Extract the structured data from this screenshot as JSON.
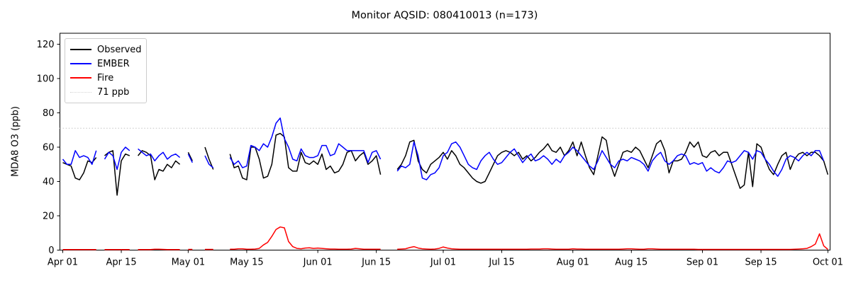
{
  "title": "Monitor AQSID: 080410013 (n=173)",
  "ylabel": "MDA8 O3 (ppb)",
  "colors": {
    "observed": "#000000",
    "ember": "#0000ff",
    "fire": "#ff0000",
    "threshold": "#d3d3d3",
    "axis": "#000000"
  },
  "legend": [
    {
      "label": "Observed",
      "color": "#000000",
      "style": "solid"
    },
    {
      "label": "EMBER",
      "color": "#0000ff",
      "style": "solid"
    },
    {
      "label": "Fire",
      "color": "#ff0000",
      "style": "solid"
    },
    {
      "label": "71 ppb",
      "color": "#d3d3d3",
      "style": "dotted"
    }
  ],
  "chart_data": {
    "type": "line",
    "title": "Monitor AQSID: 080410013 (n=173)",
    "xlabel": "",
    "ylabel": "MDA8 O3 (ppb)",
    "threshold_ppb": 71,
    "y_ticks": [
      0,
      20,
      40,
      60,
      80,
      100,
      120
    ],
    "ylim": [
      0,
      126.4
    ],
    "x_tick_labels": [
      "Apr 01",
      "Apr 15",
      "May 01",
      "May 15",
      "Jun 01",
      "Jun 15",
      "Jul 01",
      "Jul 15",
      "Aug 01",
      "Aug 15",
      "Sep 01",
      "Sep 15",
      "Oct 01"
    ],
    "x_tick_days": [
      0,
      14,
      30,
      44,
      61,
      75,
      91,
      105,
      122,
      136,
      153,
      167,
      183
    ],
    "legend_position": "upper left",
    "grid": false,
    "dates": [
      "Apr 01",
      "Apr 02",
      "Apr 03",
      "Apr 04",
      "Apr 05",
      "Apr 06",
      "Apr 07",
      "Apr 08",
      "Apr 09",
      "Apr 10",
      "Apr 11",
      "Apr 12",
      "Apr 13",
      "Apr 14",
      "Apr 15",
      "Apr 16",
      "Apr 17",
      "Apr 18",
      "Apr 19",
      "Apr 20",
      "Apr 21",
      "Apr 22",
      "Apr 23",
      "Apr 24",
      "Apr 25",
      "Apr 26",
      "Apr 27",
      "Apr 28",
      "Apr 29",
      "Apr 30",
      "May 01",
      "May 02",
      "May 03",
      "May 04",
      "May 05",
      "May 06",
      "May 07",
      "May 08",
      "May 09",
      "May 10",
      "May 11",
      "May 12",
      "May 13",
      "May 14",
      "May 15",
      "May 16",
      "May 17",
      "May 18",
      "May 19",
      "May 20",
      "May 21",
      "May 22",
      "May 23",
      "May 24",
      "May 25",
      "May 26",
      "May 27",
      "May 28",
      "May 29",
      "May 30",
      "May 31",
      "Jun 01",
      "Jun 02",
      "Jun 03",
      "Jun 04",
      "Jun 05",
      "Jun 06",
      "Jun 07",
      "Jun 08",
      "Jun 09",
      "Jun 10",
      "Jun 11",
      "Jun 12",
      "Jun 13",
      "Jun 14",
      "Jun 15",
      "Jun 16",
      "Jun 17",
      "Jun 18",
      "Jun 19",
      "Jun 20",
      "Jun 21",
      "Jun 22",
      "Jun 23",
      "Jun 24",
      "Jun 25",
      "Jun 26",
      "Jun 27",
      "Jun 28",
      "Jun 29",
      "Jun 30",
      "Jul 01",
      "Jul 02",
      "Jul 03",
      "Jul 04",
      "Jul 05",
      "Jul 06",
      "Jul 07",
      "Jul 08",
      "Jul 09",
      "Jul 10",
      "Jul 11",
      "Jul 12",
      "Jul 13",
      "Jul 14",
      "Jul 15",
      "Jul 16",
      "Jul 17",
      "Jul 18",
      "Jul 19",
      "Jul 20",
      "Jul 21",
      "Jul 22",
      "Jul 23",
      "Jul 24",
      "Jul 25",
      "Jul 26",
      "Jul 27",
      "Jul 28",
      "Jul 29",
      "Jul 30",
      "Jul 31",
      "Aug 01",
      "Aug 02",
      "Aug 03",
      "Aug 04",
      "Aug 05",
      "Aug 06",
      "Aug 07",
      "Aug 08",
      "Aug 09",
      "Aug 10",
      "Aug 11",
      "Aug 12",
      "Aug 13",
      "Aug 14",
      "Aug 15",
      "Aug 16",
      "Aug 17",
      "Aug 18",
      "Aug 19",
      "Aug 20",
      "Aug 21",
      "Aug 22",
      "Aug 23",
      "Aug 24",
      "Aug 25",
      "Aug 26",
      "Aug 27",
      "Aug 28",
      "Aug 29",
      "Aug 30",
      "Aug 31",
      "Sep 01",
      "Sep 02",
      "Sep 03",
      "Sep 04",
      "Sep 05",
      "Sep 06",
      "Sep 07",
      "Sep 08",
      "Sep 09",
      "Sep 10",
      "Sep 11",
      "Sep 12",
      "Sep 13",
      "Sep 14",
      "Sep 15",
      "Sep 16",
      "Sep 17",
      "Sep 18",
      "Sep 19",
      "Sep 20",
      "Sep 21",
      "Sep 22",
      "Sep 23",
      "Sep 24",
      "Sep 25",
      "Sep 26",
      "Sep 27",
      "Sep 28",
      "Sep 29",
      "Sep 30",
      "Oct 01"
    ],
    "series": [
      {
        "name": "Observed",
        "color": "#000000",
        "values": [
          51,
          50,
          49,
          42,
          41,
          45,
          52,
          51,
          54,
          null,
          55,
          57,
          58,
          32,
          52,
          56,
          55,
          null,
          55,
          58,
          57,
          55,
          41,
          47,
          46,
          50,
          48,
          52,
          50,
          null,
          57,
          52,
          null,
          null,
          60,
          53,
          47,
          null,
          null,
          null,
          56,
          48,
          49,
          42,
          41,
          60,
          60,
          53,
          42,
          43,
          50,
          67,
          68,
          66,
          48,
          46,
          46,
          57,
          51,
          50,
          52,
          50,
          56,
          47,
          49,
          45,
          46,
          50,
          57,
          58,
          52,
          55,
          57,
          50,
          52,
          55,
          44,
          null,
          null,
          null,
          47,
          50,
          55,
          63,
          64,
          52,
          47,
          45,
          50,
          52,
          54,
          57,
          53,
          58,
          55,
          50,
          48,
          45,
          42,
          40,
          39,
          40,
          45,
          50,
          55,
          57,
          58,
          57,
          55,
          57,
          53,
          55,
          52,
          54,
          57,
          59,
          62,
          58,
          57,
          60,
          55,
          58,
          63,
          55,
          63,
          55,
          48,
          44,
          55,
          66,
          64,
          50,
          43,
          50,
          57,
          58,
          57,
          60,
          58,
          53,
          48,
          55,
          62,
          64,
          58,
          45,
          52,
          52,
          53,
          57,
          63,
          60,
          63,
          55,
          54,
          57,
          58,
          55,
          57,
          57,
          50,
          43,
          36,
          38,
          57,
          37,
          62,
          60,
          53,
          47,
          44,
          50,
          55,
          57,
          47,
          53,
          56,
          57,
          55,
          57,
          57,
          55,
          52,
          44
        ]
      },
      {
        "name": "EMBER",
        "color": "#0000ff",
        "values": [
          53,
          50,
          50,
          58,
          54,
          55,
          54,
          50,
          58,
          null,
          53,
          57,
          55,
          47,
          57,
          60,
          58,
          null,
          59,
          57,
          55,
          56,
          52,
          55,
          57,
          53,
          55,
          56,
          54,
          null,
          56,
          51,
          null,
          null,
          55,
          50,
          48,
          null,
          null,
          null,
          54,
          50,
          52,
          48,
          49,
          61,
          60,
          58,
          62,
          60,
          66,
          74,
          77,
          65,
          60,
          53,
          52,
          59,
          55,
          54,
          54,
          55,
          61,
          61,
          55,
          56,
          62,
          60,
          58,
          58,
          58,
          58,
          58,
          51,
          57,
          58,
          53,
          null,
          null,
          null,
          46,
          49,
          48,
          50,
          63,
          55,
          42,
          41,
          44,
          45,
          48,
          55,
          57,
          62,
          63,
          60,
          55,
          50,
          48,
          47,
          52,
          55,
          57,
          53,
          50,
          51,
          54,
          57,
          59,
          55,
          51,
          54,
          56,
          52,
          53,
          55,
          53,
          50,
          53,
          51,
          55,
          57,
          60,
          58,
          55,
          52,
          49,
          47,
          52,
          58,
          54,
          50,
          48,
          52,
          53,
          52,
          54,
          53,
          52,
          50,
          46,
          52,
          55,
          57,
          52,
          50,
          52,
          55,
          56,
          55,
          50,
          51,
          50,
          51,
          46,
          48,
          46,
          45,
          48,
          52,
          51,
          52,
          55,
          58,
          57,
          53,
          58,
          57,
          53,
          50,
          46,
          43,
          47,
          53,
          55,
          54,
          52,
          55,
          57,
          55,
          58,
          58,
          52,
          null
        ]
      },
      {
        "name": "Fire",
        "color": "#ff0000",
        "values": [
          0.3,
          0.3,
          0.3,
          0.3,
          0.3,
          0.3,
          0.3,
          0.3,
          0.3,
          null,
          0.3,
          0.3,
          0.3,
          0.3,
          0.3,
          0.3,
          0.3,
          null,
          0.3,
          0.3,
          0.3,
          0.3,
          0.5,
          0.5,
          0.4,
          0.3,
          0.3,
          0.3,
          0.3,
          null,
          0.4,
          0.4,
          null,
          null,
          0.4,
          0.4,
          0.4,
          null,
          null,
          null,
          0.5,
          0.5,
          0.8,
          0.8,
          0.5,
          0.5,
          0.6,
          1.0,
          3.0,
          4.5,
          8.0,
          12.0,
          13.5,
          13.0,
          5.0,
          2.0,
          1.0,
          0.8,
          1.2,
          1.3,
          1.0,
          1.2,
          1.0,
          0.8,
          0.6,
          0.6,
          0.5,
          0.5,
          0.5,
          0.6,
          1.0,
          0.8,
          0.5,
          0.5,
          0.5,
          0.5,
          0.5,
          null,
          null,
          null,
          0.5,
          0.6,
          0.8,
          1.5,
          2.0,
          1.2,
          0.8,
          0.6,
          0.5,
          0.6,
          1.0,
          1.8,
          1.2,
          0.8,
          0.6,
          0.5,
          0.5,
          0.5,
          0.5,
          0.5,
          0.5,
          0.5,
          0.5,
          0.5,
          0.5,
          0.5,
          0.5,
          0.5,
          0.5,
          0.5,
          0.5,
          0.5,
          0.6,
          0.6,
          0.6,
          0.8,
          0.8,
          0.6,
          0.5,
          0.5,
          0.5,
          0.5,
          0.8,
          0.6,
          0.6,
          0.5,
          0.5,
          0.5,
          0.5,
          0.5,
          0.5,
          0.5,
          0.5,
          0.5,
          0.6,
          0.8,
          0.8,
          0.6,
          0.5,
          0.5,
          0.8,
          0.8,
          0.6,
          0.5,
          0.5,
          0.5,
          0.5,
          0.5,
          0.5,
          0.5,
          0.5,
          0.5,
          0.4,
          0.4,
          0.4,
          0.4,
          0.4,
          0.4,
          0.4,
          0.4,
          0.4,
          0.4,
          0.4,
          0.4,
          0.4,
          0.4,
          0.4,
          0.4,
          0.4,
          0.4,
          0.4,
          0.4,
          0.4,
          0.4,
          0.4,
          0.5,
          0.6,
          0.8,
          1.0,
          2.0,
          3.5,
          9.5,
          2.5,
          0.4
        ]
      }
    ]
  }
}
